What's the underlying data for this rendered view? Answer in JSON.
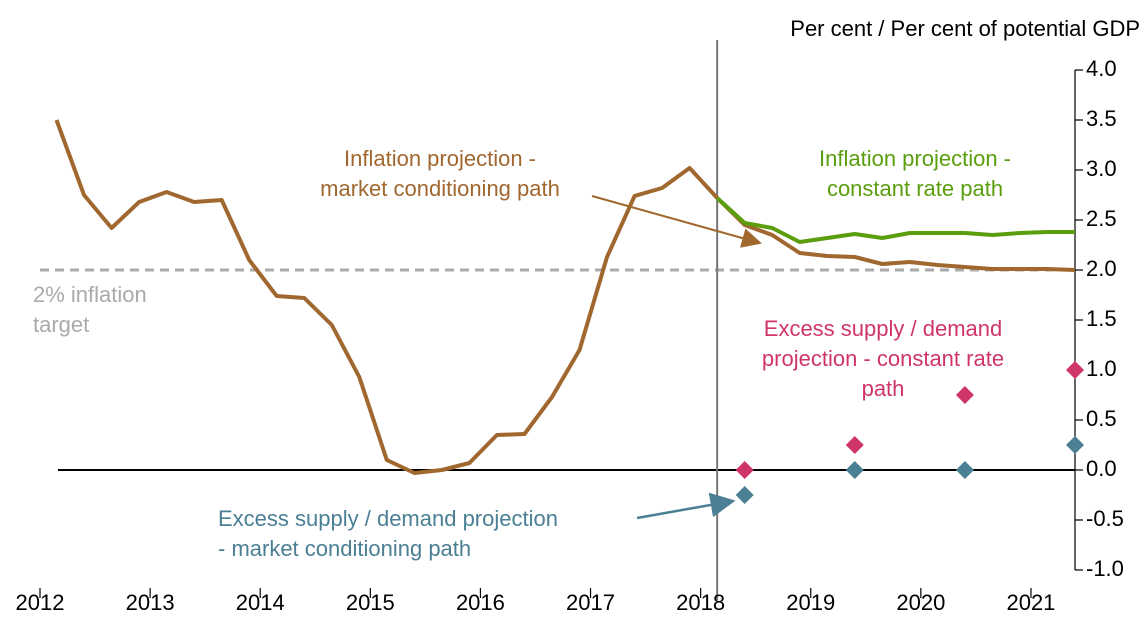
{
  "chart_data": {
    "type": "line",
    "y_label": "Per cent / Per cent of potential GDP",
    "xlim": [
      2012,
      2021.4
    ],
    "xticks": [
      2012,
      2013,
      2014,
      2015,
      2016,
      2017,
      2018,
      2019,
      2020,
      2021
    ],
    "ylim": [
      -1.0,
      4.0
    ],
    "yticks": [
      {
        "value": -1.0,
        "label": "-1.0"
      },
      {
        "value": -0.5,
        "label": "-0.5"
      },
      {
        "value": 0.0,
        "label": "0.0"
      },
      {
        "value": 0.5,
        "label": "0.5"
      },
      {
        "value": 1.0,
        "label": "1.0"
      },
      {
        "value": 1.5,
        "label": "1.5"
      },
      {
        "value": 2.0,
        "label": "2.0"
      },
      {
        "value": 2.5,
        "label": "2.5"
      },
      {
        "value": 3.0,
        "label": "3.0"
      },
      {
        "value": 3.5,
        "label": "3.5"
      },
      {
        "value": 4.0,
        "label": "4.0"
      }
    ],
    "vline": 2018.15,
    "target_line": 2.0,
    "series": [
      {
        "name": "Inflation projection - market conditioning path",
        "style": "line",
        "color": "#a0672f",
        "x": [
          2012.15,
          2012.4,
          2012.65,
          2012.9,
          2013.15,
          2013.4,
          2013.65,
          2013.9,
          2014.15,
          2014.4,
          2014.65,
          2014.9,
          2015.15,
          2015.4,
          2015.65,
          2015.9,
          2016.15,
          2016.4,
          2016.65,
          2016.9,
          2017.15,
          2017.4,
          2017.65,
          2017.9,
          2018.15,
          2018.4,
          2018.65,
          2018.9,
          2019.15,
          2019.4,
          2019.65,
          2019.9,
          2020.15,
          2020.4,
          2020.65,
          2020.9,
          2021.15,
          2021.4
        ],
        "values": [
          3.5,
          2.75,
          2.42,
          2.68,
          2.78,
          2.68,
          2.7,
          2.1,
          1.74,
          1.72,
          1.45,
          0.93,
          0.1,
          -0.03,
          0.0,
          0.07,
          0.35,
          0.36,
          0.73,
          1.2,
          2.13,
          2.74,
          2.82,
          3.02,
          2.72,
          2.45,
          2.35,
          2.17,
          2.14,
          2.13,
          2.06,
          2.08,
          2.05,
          2.03,
          2.01,
          2.01,
          2.01,
          2.0
        ]
      },
      {
        "name": "Inflation projection - constant rate path",
        "style": "line",
        "color": "#5a9e0e",
        "x": [
          2018.15,
          2018.4,
          2018.65,
          2018.9,
          2019.15,
          2019.4,
          2019.65,
          2019.9,
          2020.15,
          2020.4,
          2020.65,
          2020.9,
          2021.15,
          2021.4
        ],
        "values": [
          2.72,
          2.47,
          2.42,
          2.28,
          2.32,
          2.36,
          2.32,
          2.37,
          2.37,
          2.37,
          2.35,
          2.37,
          2.38,
          2.38
        ]
      },
      {
        "name": "Excess supply / demand projection - constant rate path",
        "style": "diamond",
        "color": "#d0356a",
        "x": [
          2018.4,
          2019.4,
          2020.4,
          2021.4
        ],
        "values": [
          0.0,
          0.25,
          0.75,
          1.0
        ]
      },
      {
        "name": "Excess supply / demand projection - market conditioning path",
        "style": "diamond",
        "color": "#4a7f94",
        "x": [
          2018.4,
          2019.4,
          2020.4,
          2021.4
        ],
        "values": [
          -0.25,
          0.0,
          0.0,
          0.25
        ]
      }
    ],
    "annotations": [
      {
        "lines": [
          "Inflation projection -",
          "market conditioning path"
        ],
        "color": "#a0672f"
      },
      {
        "lines": [
          "Inflation projection -",
          "constant rate path"
        ],
        "color": "#5a9e0e"
      },
      {
        "lines": [
          "Excess supply / demand",
          "projection - constant rate",
          "path"
        ],
        "color": "#d0356a"
      },
      {
        "lines": [
          "Excess supply / demand projection",
          "- market conditioning path"
        ],
        "color": "#4a7f94"
      },
      {
        "lines": [
          "2% inflation",
          "target"
        ],
        "color": "#aaaaaa"
      }
    ]
  }
}
